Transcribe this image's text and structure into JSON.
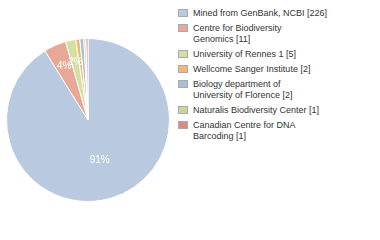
{
  "chart_data": {
    "type": "pie",
    "categories": [
      "Mined from GenBank, NCBI [226]",
      "Centre for Biodiversity\nGenomics [11]",
      "University of Rennes 1 [5]",
      "Wellcome Sanger Institute [2]",
      "Biology department of\nUniversity of Florence [2]",
      "Naturalis Biodiversity Center [1]",
      "Canadian Centre for DNA\nBarcoding [1]"
    ],
    "values": [
      91.12903225806451,
      4.435483870967742,
      2.0161290322580645,
      0.8064516129032258,
      0.8064516129032258,
      0.4032258064516129,
      0.4032258064516129
    ],
    "value_labels": [
      "91%",
      "4%",
      "2%",
      null,
      null,
      null,
      null
    ],
    "data_labels": true,
    "colors": [
      "#b8c9e0",
      "#e8a898",
      "#d4e0a0",
      "#f0b870",
      "#a8c0d8",
      "#c8d898",
      "#e08888"
    ],
    "legend": "right"
  }
}
